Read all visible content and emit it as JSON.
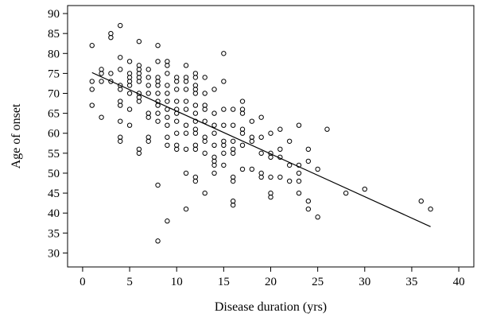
{
  "chart_data": {
    "type": "scatter",
    "title": "",
    "xlabel": "Disease duration (yrs)",
    "ylabel": "Age of onset",
    "xlim": [
      -1.6,
      41.6
    ],
    "ylim": [
      26.5,
      92.0
    ],
    "x_ticks": [
      0,
      5,
      10,
      15,
      20,
      25,
      30,
      35,
      40
    ],
    "y_ticks": [
      30,
      35,
      40,
      45,
      50,
      55,
      60,
      65,
      70,
      75,
      80,
      85,
      90
    ],
    "x_tick_labels": [
      "0",
      "5",
      "10",
      "15",
      "20",
      "25",
      "30",
      "35",
      "40"
    ],
    "y_tick_labels": [
      "30",
      "35",
      "40",
      "45",
      "50",
      "55",
      "60",
      "65",
      "70",
      "75",
      "80",
      "85",
      "90"
    ],
    "grid": false,
    "legend": "none",
    "marker": "open-circle",
    "regression_line": {
      "x": [
        1,
        37
      ],
      "y": [
        75.2,
        36.6
      ]
    },
    "points": [
      [
        1,
        82
      ],
      [
        1,
        73
      ],
      [
        1,
        71
      ],
      [
        1,
        67
      ],
      [
        2,
        76
      ],
      [
        2,
        75
      ],
      [
        2,
        73
      ],
      [
        2,
        64
      ],
      [
        3,
        85
      ],
      [
        3,
        84
      ],
      [
        3,
        75
      ],
      [
        3,
        73
      ],
      [
        4,
        87
      ],
      [
        4,
        79
      ],
      [
        4,
        76
      ],
      [
        4,
        72
      ],
      [
        4,
        71
      ],
      [
        4,
        68
      ],
      [
        4,
        67
      ],
      [
        4,
        63
      ],
      [
        4,
        59
      ],
      [
        4,
        58
      ],
      [
        5,
        78
      ],
      [
        5,
        75
      ],
      [
        5,
        74
      ],
      [
        5,
        73
      ],
      [
        5,
        72
      ],
      [
        5,
        70
      ],
      [
        5,
        66
      ],
      [
        5,
        62
      ],
      [
        6,
        83
      ],
      [
        6,
        77
      ],
      [
        6,
        76
      ],
      [
        6,
        75
      ],
      [
        6,
        74
      ],
      [
        6,
        73
      ],
      [
        6,
        70
      ],
      [
        6,
        69
      ],
      [
        6,
        68
      ],
      [
        6,
        56
      ],
      [
        6,
        55
      ],
      [
        7,
        76
      ],
      [
        7,
        74
      ],
      [
        7,
        72
      ],
      [
        7,
        70
      ],
      [
        7,
        65
      ],
      [
        7,
        64
      ],
      [
        7,
        59
      ],
      [
        7,
        58
      ],
      [
        8,
        82
      ],
      [
        8,
        78
      ],
      [
        8,
        74
      ],
      [
        8,
        73
      ],
      [
        8,
        72
      ],
      [
        8,
        70
      ],
      [
        8,
        68
      ],
      [
        8,
        67
      ],
      [
        8,
        65
      ],
      [
        8,
        63
      ],
      [
        8,
        47
      ],
      [
        8,
        33
      ],
      [
        9,
        78
      ],
      [
        9,
        77
      ],
      [
        9,
        75
      ],
      [
        9,
        72
      ],
      [
        9,
        70
      ],
      [
        9,
        68
      ],
      [
        9,
        66
      ],
      [
        9,
        64
      ],
      [
        9,
        62
      ],
      [
        9,
        59
      ],
      [
        9,
        57
      ],
      [
        9,
        38
      ],
      [
        10,
        74
      ],
      [
        10,
        73
      ],
      [
        10,
        71
      ],
      [
        10,
        68
      ],
      [
        10,
        66
      ],
      [
        10,
        65
      ],
      [
        10,
        63
      ],
      [
        10,
        60
      ],
      [
        10,
        57
      ],
      [
        10,
        56
      ],
      [
        11,
        77
      ],
      [
        11,
        74
      ],
      [
        11,
        73
      ],
      [
        11,
        71
      ],
      [
        11,
        68
      ],
      [
        11,
        66
      ],
      [
        11,
        62
      ],
      [
        11,
        60
      ],
      [
        11,
        56
      ],
      [
        11,
        50
      ],
      [
        11,
        41
      ],
      [
        12,
        75
      ],
      [
        12,
        74
      ],
      [
        12,
        72
      ],
      [
        12,
        71
      ],
      [
        12,
        70
      ],
      [
        12,
        67
      ],
      [
        12,
        65
      ],
      [
        12,
        63
      ],
      [
        12,
        61
      ],
      [
        12,
        60
      ],
      [
        12,
        57
      ],
      [
        12,
        56
      ],
      [
        12,
        49
      ],
      [
        12,
        48
      ],
      [
        13,
        74
      ],
      [
        13,
        70
      ],
      [
        13,
        67
      ],
      [
        13,
        66
      ],
      [
        13,
        63
      ],
      [
        13,
        59
      ],
      [
        13,
        58
      ],
      [
        13,
        55
      ],
      [
        13,
        45
      ],
      [
        14,
        71
      ],
      [
        14,
        65
      ],
      [
        14,
        62
      ],
      [
        14,
        60
      ],
      [
        14,
        57
      ],
      [
        14,
        54
      ],
      [
        14,
        53
      ],
      [
        14,
        52
      ],
      [
        14,
        50
      ],
      [
        15,
        80
      ],
      [
        15,
        73
      ],
      [
        15,
        66
      ],
      [
        15,
        62
      ],
      [
        15,
        58
      ],
      [
        15,
        57
      ],
      [
        15,
        55
      ],
      [
        15,
        52
      ],
      [
        16,
        66
      ],
      [
        16,
        62
      ],
      [
        16,
        58
      ],
      [
        16,
        56
      ],
      [
        16,
        55
      ],
      [
        16,
        49
      ],
      [
        16,
        48
      ],
      [
        16,
        43
      ],
      [
        16,
        42
      ],
      [
        17,
        68
      ],
      [
        17,
        66
      ],
      [
        17,
        65
      ],
      [
        17,
        61
      ],
      [
        17,
        60
      ],
      [
        17,
        57
      ],
      [
        17,
        51
      ],
      [
        18,
        63
      ],
      [
        18,
        59
      ],
      [
        18,
        58
      ],
      [
        18,
        51
      ],
      [
        19,
        64
      ],
      [
        19,
        59
      ],
      [
        19,
        55
      ],
      [
        19,
        50
      ],
      [
        19,
        49
      ],
      [
        20,
        60
      ],
      [
        20,
        55
      ],
      [
        20,
        54
      ],
      [
        20,
        49
      ],
      [
        20,
        45
      ],
      [
        20,
        44
      ],
      [
        21,
        61
      ],
      [
        21,
        56
      ],
      [
        21,
        54
      ],
      [
        21,
        49
      ],
      [
        22,
        58
      ],
      [
        22,
        52
      ],
      [
        22,
        48
      ],
      [
        23,
        62
      ],
      [
        23,
        52
      ],
      [
        23,
        50
      ],
      [
        23,
        48
      ],
      [
        23,
        45
      ],
      [
        24,
        56
      ],
      [
        24,
        53
      ],
      [
        24,
        43
      ],
      [
        24,
        41
      ],
      [
        25,
        51
      ],
      [
        25,
        39
      ],
      [
        26,
        61
      ],
      [
        28,
        45
      ],
      [
        30,
        46
      ],
      [
        36,
        43
      ],
      [
        37,
        41
      ]
    ]
  }
}
